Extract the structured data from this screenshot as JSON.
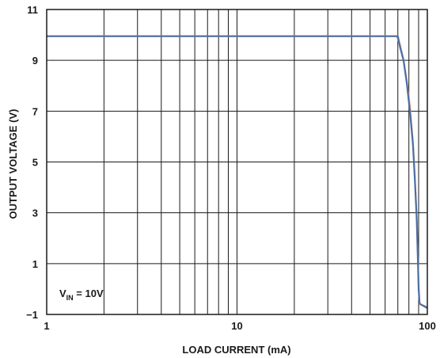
{
  "chart_data": {
    "type": "line",
    "title": "",
    "xlabel": "LOAD CURRENT (mA)",
    "ylabel": "OUTPUT VOLTAGE (V)",
    "xscale": "log",
    "xlim": [
      1,
      100
    ],
    "ylim": [
      -1,
      11
    ],
    "x_ticks": [
      1,
      10,
      100
    ],
    "x_tick_labels": [
      "1",
      "10",
      "100"
    ],
    "y_ticks": [
      -1,
      1,
      3,
      5,
      7,
      9,
      11
    ],
    "y_tick_labels": [
      "−1",
      "1",
      "3",
      "5",
      "7",
      "9",
      "11"
    ],
    "grid": true,
    "annotation": {
      "main": "V",
      "sub": "IN",
      "rest": " = 10V"
    },
    "series": [
      {
        "color": "#f0a070",
        "x": [
          1,
          5,
          10,
          20,
          30,
          50,
          60,
          69,
          72,
          75,
          78,
          81,
          84,
          86,
          88,
          89,
          90,
          91,
          92,
          100
        ],
        "y": [
          9.95,
          9.95,
          9.95,
          9.95,
          9.95,
          9.95,
          9.95,
          9.95,
          9.6,
          9.0,
          8.2,
          7.2,
          5.8,
          4.4,
          2.8,
          1.5,
          0.2,
          -0.6,
          -0.6,
          -0.7
        ]
      },
      {
        "color": "#4a6fa5",
        "x": [
          1,
          5,
          10,
          20,
          30,
          50,
          60,
          70,
          72,
          75,
          78,
          81,
          84,
          86,
          88,
          89,
          90,
          91,
          92,
          100
        ],
        "y": [
          9.95,
          9.95,
          9.95,
          9.95,
          9.95,
          9.95,
          9.95,
          9.95,
          9.5,
          9.0,
          8.1,
          7.0,
          5.7,
          4.3,
          2.7,
          1.4,
          0.0,
          -0.55,
          -0.6,
          -0.75
        ]
      }
    ]
  }
}
